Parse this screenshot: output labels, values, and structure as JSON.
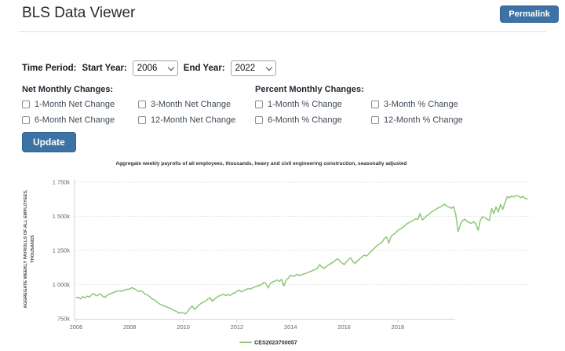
{
  "colors": {
    "accent_blue": "#3d72a6"
  },
  "header": {
    "title": "BLS Data Viewer",
    "permalink_label": "Permalink"
  },
  "time_period": {
    "label": "Time Period:",
    "start_label": "Start Year:",
    "start_value": "2006",
    "end_label": "End Year:",
    "end_value": "2022"
  },
  "net_changes": {
    "heading": "Net Monthly Changes:",
    "options": [
      {
        "label": "1-Month Net Change",
        "checked": false
      },
      {
        "label": "3-Month Net Change",
        "checked": false
      },
      {
        "label": "6-Month Net Change",
        "checked": false
      },
      {
        "label": "12-Month Net Change",
        "checked": false
      }
    ]
  },
  "percent_changes": {
    "heading": "Percent Monthly Changes:",
    "options": [
      {
        "label": "1-Month % Change",
        "checked": false
      },
      {
        "label": "3-Month % Change",
        "checked": false
      },
      {
        "label": "6-Month % Change",
        "checked": false
      },
      {
        "label": "12-Month % Change",
        "checked": false
      }
    ]
  },
  "update_label": "Update",
  "chart_data": {
    "type": "line",
    "title": "Aggregate weekly payrolls of all employees, thousands, heavy and civil engineering construction, seasonally adjusted",
    "ylabel_line1": "AGGREGATE WEEKLY PAYROLLS OF ALL EMPLOYEES,",
    "ylabel_line2": "THOUSANDS",
    "legend": "CES2023700057",
    "line_color": "#8dc778",
    "axis_color": "#ccd6eb",
    "grid_color": "#d9d9d9",
    "ylim": [
      750,
      1750
    ],
    "grid": true,
    "legend_position": "bottom-center",
    "y_ticks": [
      "1 750k",
      "1 500k",
      "1 250k",
      "1 000k",
      "750k"
    ],
    "y_tick_values": [
      1750,
      1500,
      1250,
      1000,
      750
    ],
    "x_ticks": [
      2006,
      2008,
      2010,
      2012,
      2014,
      2016,
      2018
    ],
    "x_start_year": 2006,
    "x_start_month": 1,
    "x_end_year": 2022,
    "x_end_month": 11,
    "units": "thousands (k)",
    "values": [
      905,
      908,
      896,
      912,
      904,
      916,
      910,
      927,
      934,
      918,
      926,
      931,
      914,
      907,
      924,
      930,
      938,
      944,
      950,
      955,
      951,
      957,
      962,
      966,
      968,
      978,
      971,
      960,
      950,
      955,
      944,
      930,
      924,
      912,
      896,
      889,
      877,
      862,
      854,
      847,
      840,
      834,
      827,
      819,
      810,
      804,
      790,
      797,
      792,
      787,
      804,
      828,
      843,
      817,
      834,
      851,
      864,
      871,
      880,
      894,
      904,
      879,
      894,
      907,
      917,
      924,
      929,
      919,
      927,
      921,
      934,
      940,
      951,
      961,
      947,
      957,
      964,
      971,
      967,
      977,
      984,
      989,
      994,
      1000,
      1017,
      1007,
      976,
      1010,
      1019,
      1027,
      1034,
      1024,
      1039,
      991,
      1034,
      1047,
      1069,
      1061,
      1067,
      1074,
      1067,
      1071,
      1079,
      1084,
      1090,
      1097,
      1104,
      1111,
      1119,
      1147,
      1129,
      1119,
      1134,
      1144,
      1154,
      1164,
      1177,
      1190,
      1174,
      1159,
      1147,
      1167,
      1184,
      1196,
      1164,
      1157,
      1174,
      1189,
      1204,
      1216,
      1209,
      1224,
      1243,
      1257,
      1274,
      1291,
      1299,
      1311,
      1339,
      1348,
      1304,
      1354,
      1368,
      1379,
      1397,
      1407,
      1416,
      1429,
      1444,
      1454,
      1463,
      1471,
      1483,
      1477,
      1521,
      1473,
      1489,
      1504,
      1514,
      1531,
      1539,
      1551,
      1561,
      1569,
      1579,
      1588,
      1574,
      1567,
      1559,
      1571,
      1509,
      1388,
      1439,
      1469,
      1479,
      1464,
      1454,
      1449,
      1461,
      1444,
      1397,
      1474,
      1497,
      1489,
      1479,
      1469,
      1557,
      1519,
      1569,
      1531,
      1587,
      1551,
      1599,
      1644,
      1636,
      1649,
      1641,
      1654,
      1647,
      1637,
      1647,
      1631,
      1628
    ]
  }
}
